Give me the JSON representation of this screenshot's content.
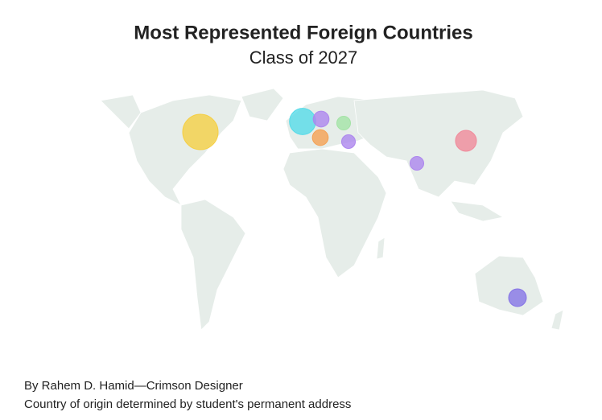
{
  "chart_data": {
    "type": "bubble-map",
    "title": "Most Represented Foreign Countries",
    "subtitle": "Class of 2027",
    "notes": [
      "By Rahem D. Hamid—Crimson Designer",
      "Country of origin determined by student's permanent address"
    ],
    "values": [
      20,
      11,
      4,
      3,
      4,
      3,
      3,
      7,
      5
    ],
    "colors": [
      "#f5cf45",
      "#56dbe8",
      "#ad86ee",
      "#a4e3a6",
      "#f5a053",
      "#ad86ee",
      "#ad86ee",
      "#f0899a",
      "#8674e6"
    ]
  }
}
